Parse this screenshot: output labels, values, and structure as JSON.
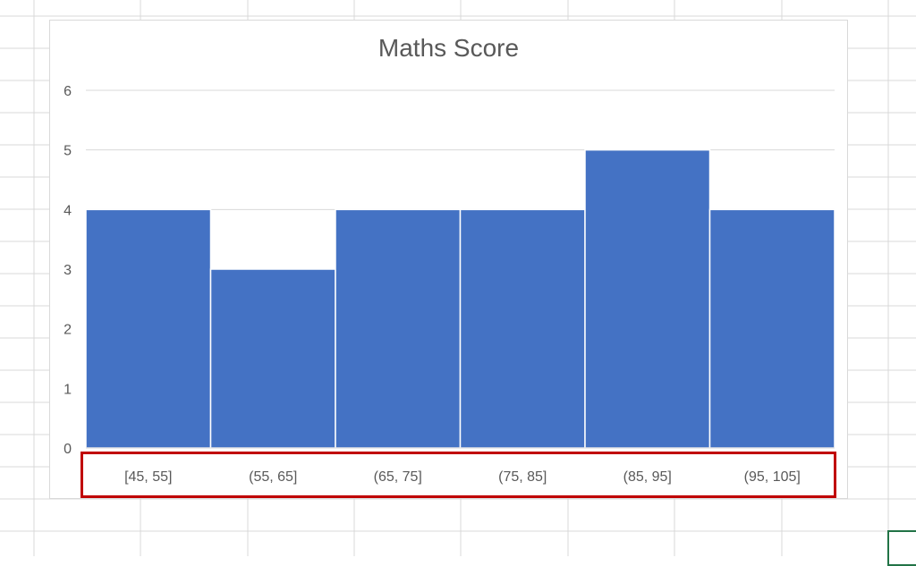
{
  "chart_data": {
    "type": "bar",
    "title": "Maths Score",
    "categories": [
      "[45, 55]",
      "(55, 65]",
      "(65, 75]",
      "(75, 85]",
      "(85, 95]",
      "(95, 105]"
    ],
    "values": [
      4,
      3,
      4,
      4,
      5,
      4
    ],
    "ylim": [
      0,
      6
    ],
    "yticks": [
      "0",
      "1",
      "2",
      "3",
      "4",
      "5",
      "6"
    ],
    "grid": true,
    "bar_color": "#4472C4",
    "highlight_color": "#C00000"
  }
}
